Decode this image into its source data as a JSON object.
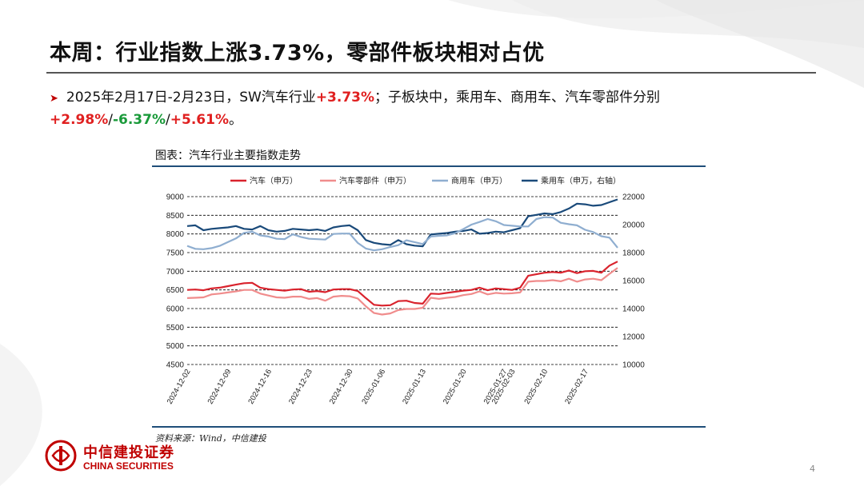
{
  "slide": {
    "title": "本周：行业指数上涨3.73%，零部件板块相对占优",
    "bullet": {
      "p1": "2025年2月17日-2月23日，SW汽车行业",
      "v1": "+3.73%",
      "p2": "；子板块中，乘用车、商用车、汽车零部件分别",
      "v2": "+2.98%",
      "s1": "/",
      "v3": "-6.37%",
      "s2": "/",
      "v4": "+5.61%",
      "end": "。"
    },
    "chart_caption": "图表：汽车行业主要指数走势",
    "source": "资料来源：Wind，中信建投",
    "logo_cn": "中信建投证券",
    "logo_en": "CHINA SECURITIES",
    "page_number": "4",
    "colors": {
      "accent_red": "#e02020",
      "accent_green": "#1a9a3a",
      "brand_red": "#c00000"
    }
  },
  "chart_data": {
    "type": "line",
    "title": "",
    "xlabel": "",
    "ylabel": "",
    "x": [
      "2024-12-02",
      "2024-12-03",
      "2024-12-04",
      "2024-12-05",
      "2024-12-06",
      "2024-12-09",
      "2024-12-10",
      "2024-12-11",
      "2024-12-12",
      "2024-12-13",
      "2024-12-16",
      "2024-12-17",
      "2024-12-18",
      "2024-12-19",
      "2024-12-20",
      "2024-12-23",
      "2024-12-24",
      "2024-12-25",
      "2024-12-26",
      "2024-12-27",
      "2024-12-30",
      "2024-12-31",
      "2025-01-02",
      "2025-01-03",
      "2025-01-06",
      "2025-01-07",
      "2025-01-08",
      "2025-01-09",
      "2025-01-10",
      "2025-01-13",
      "2025-01-14",
      "2025-01-15",
      "2025-01-16",
      "2025-01-17",
      "2025-01-20",
      "2025-01-21",
      "2025-01-22",
      "2025-01-23",
      "2025-01-24",
      "2025-01-27",
      "2025-02-03",
      "2025-02-05",
      "2025-02-06",
      "2025-02-07",
      "2025-02-10",
      "2025-02-11",
      "2025-02-12",
      "2025-02-13",
      "2025-02-14",
      "2025-02-17",
      "2025-02-18",
      "2025-02-19",
      "2025-02-20",
      "2025-02-21"
    ],
    "x_ticks": [
      "2024-12-02",
      "2024-12-09",
      "2024-12-16",
      "2024-12-23",
      "2024-12-30",
      "2025-01-06",
      "2025-01-13",
      "2025-01-20",
      "2025-01-27",
      "2025-02-03",
      "2025-02-10",
      "2025-02-17"
    ],
    "ylim_left": [
      4500,
      9000
    ],
    "yticks_left": [
      4500,
      5000,
      5500,
      6000,
      6500,
      7000,
      7500,
      8000,
      8500,
      9000
    ],
    "ylim_right": [
      10000,
      22000
    ],
    "yticks_right": [
      10000,
      12000,
      14000,
      16000,
      18000,
      20000,
      22000
    ],
    "grid": true,
    "legend_position": "top",
    "series": [
      {
        "name": "汽车（申万）",
        "axis": "left",
        "color": "#d9232d",
        "values": [
          6500,
          6510,
          6490,
          6540,
          6560,
          6600,
          6640,
          6680,
          6690,
          6560,
          6520,
          6500,
          6480,
          6510,
          6520,
          6450,
          6470,
          6440,
          6510,
          6520,
          6520,
          6470,
          6280,
          6100,
          6080,
          6090,
          6200,
          6210,
          6150,
          6130,
          6400,
          6390,
          6420,
          6450,
          6480,
          6500,
          6560,
          6490,
          6540,
          6520,
          6500,
          6560,
          6880,
          6920,
          6960,
          6980,
          6960,
          7020,
          6950,
          7000,
          7010,
          6960,
          7150,
          7260
        ]
      },
      {
        "name": "汽车零部件（申万）",
        "axis": "left",
        "color": "#f08c8c",
        "values": [
          6280,
          6290,
          6300,
          6380,
          6400,
          6430,
          6460,
          6500,
          6500,
          6400,
          6350,
          6300,
          6290,
          6320,
          6320,
          6260,
          6280,
          6210,
          6320,
          6340,
          6330,
          6270,
          6060,
          5880,
          5840,
          5870,
          5960,
          5990,
          5990,
          6020,
          6290,
          6260,
          6290,
          6310,
          6360,
          6390,
          6460,
          6380,
          6420,
          6400,
          6410,
          6430,
          6720,
          6740,
          6740,
          6760,
          6730,
          6800,
          6720,
          6780,
          6800,
          6760,
          6930,
          7090
        ]
      },
      {
        "name": "商用车（申万）",
        "axis": "left",
        "color": "#8faed0",
        "values": [
          7680,
          7600,
          7590,
          7620,
          7680,
          7780,
          7880,
          8030,
          8060,
          7960,
          7930,
          7870,
          7860,
          7990,
          7920,
          7870,
          7860,
          7850,
          8000,
          8010,
          8010,
          7760,
          7610,
          7560,
          7590,
          7650,
          7700,
          7830,
          7780,
          7730,
          7930,
          7950,
          7960,
          8020,
          8130,
          8250,
          8320,
          8400,
          8340,
          8240,
          8220,
          8200,
          8200,
          8400,
          8450,
          8440,
          8300,
          8260,
          8230,
          8110,
          8050,
          7940,
          7900,
          7630
        ]
      },
      {
        "name": "乘用车（申万，右轴）",
        "axis": "right",
        "color": "#1a4a7a",
        "values": [
          19900,
          19950,
          19600,
          19700,
          19750,
          19800,
          19900,
          19700,
          19650,
          19900,
          19600,
          19500,
          19550,
          19700,
          19650,
          19600,
          19650,
          19550,
          19800,
          19900,
          19950,
          19600,
          18900,
          18700,
          18600,
          18550,
          18900,
          18600,
          18500,
          18450,
          19300,
          19350,
          19400,
          19500,
          19550,
          19650,
          19350,
          19400,
          19500,
          19450,
          19600,
          19750,
          20600,
          20700,
          20800,
          20750,
          20900,
          21150,
          21500,
          21450,
          21350,
          21400,
          21600,
          21800
        ]
      }
    ]
  }
}
